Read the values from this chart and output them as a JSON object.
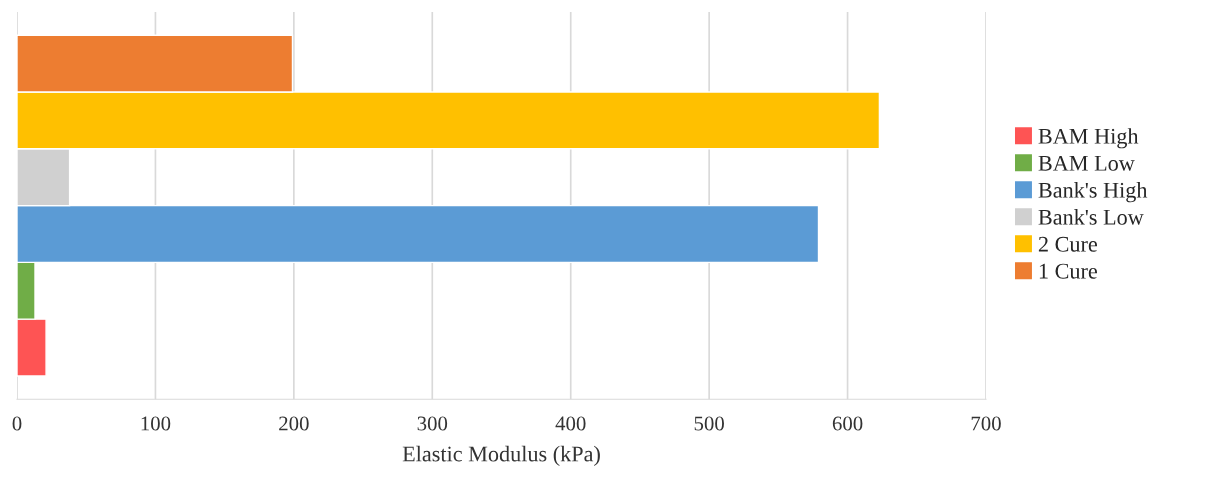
{
  "chart_data": {
    "type": "bar",
    "orientation": "horizontal",
    "xlabel": "Elastic Modulus (kPa)",
    "categories": [
      null
    ],
    "series": [
      {
        "name": "BAM High",
        "color": "#fe5454",
        "values": [
          21
        ]
      },
      {
        "name": "BAM Low",
        "color": "#70ad47",
        "values": [
          13
        ]
      },
      {
        "name": "Bank's High",
        "color": "#5b9bd5",
        "values": [
          579
        ]
      },
      {
        "name": "Bank's Low",
        "color": "#d0d0d0",
        "values": [
          38
        ]
      },
      {
        "name": "2 Cure",
        "color": "#ffc000",
        "values": [
          623
        ]
      },
      {
        "name": "1 Cure",
        "color": "#ed7d31",
        "values": [
          199
        ]
      }
    ],
    "xlim": [
      0,
      700
    ],
    "xticks": [
      0,
      100,
      200,
      300,
      400,
      500,
      600,
      700
    ],
    "grid": "x",
    "legend": "right"
  }
}
